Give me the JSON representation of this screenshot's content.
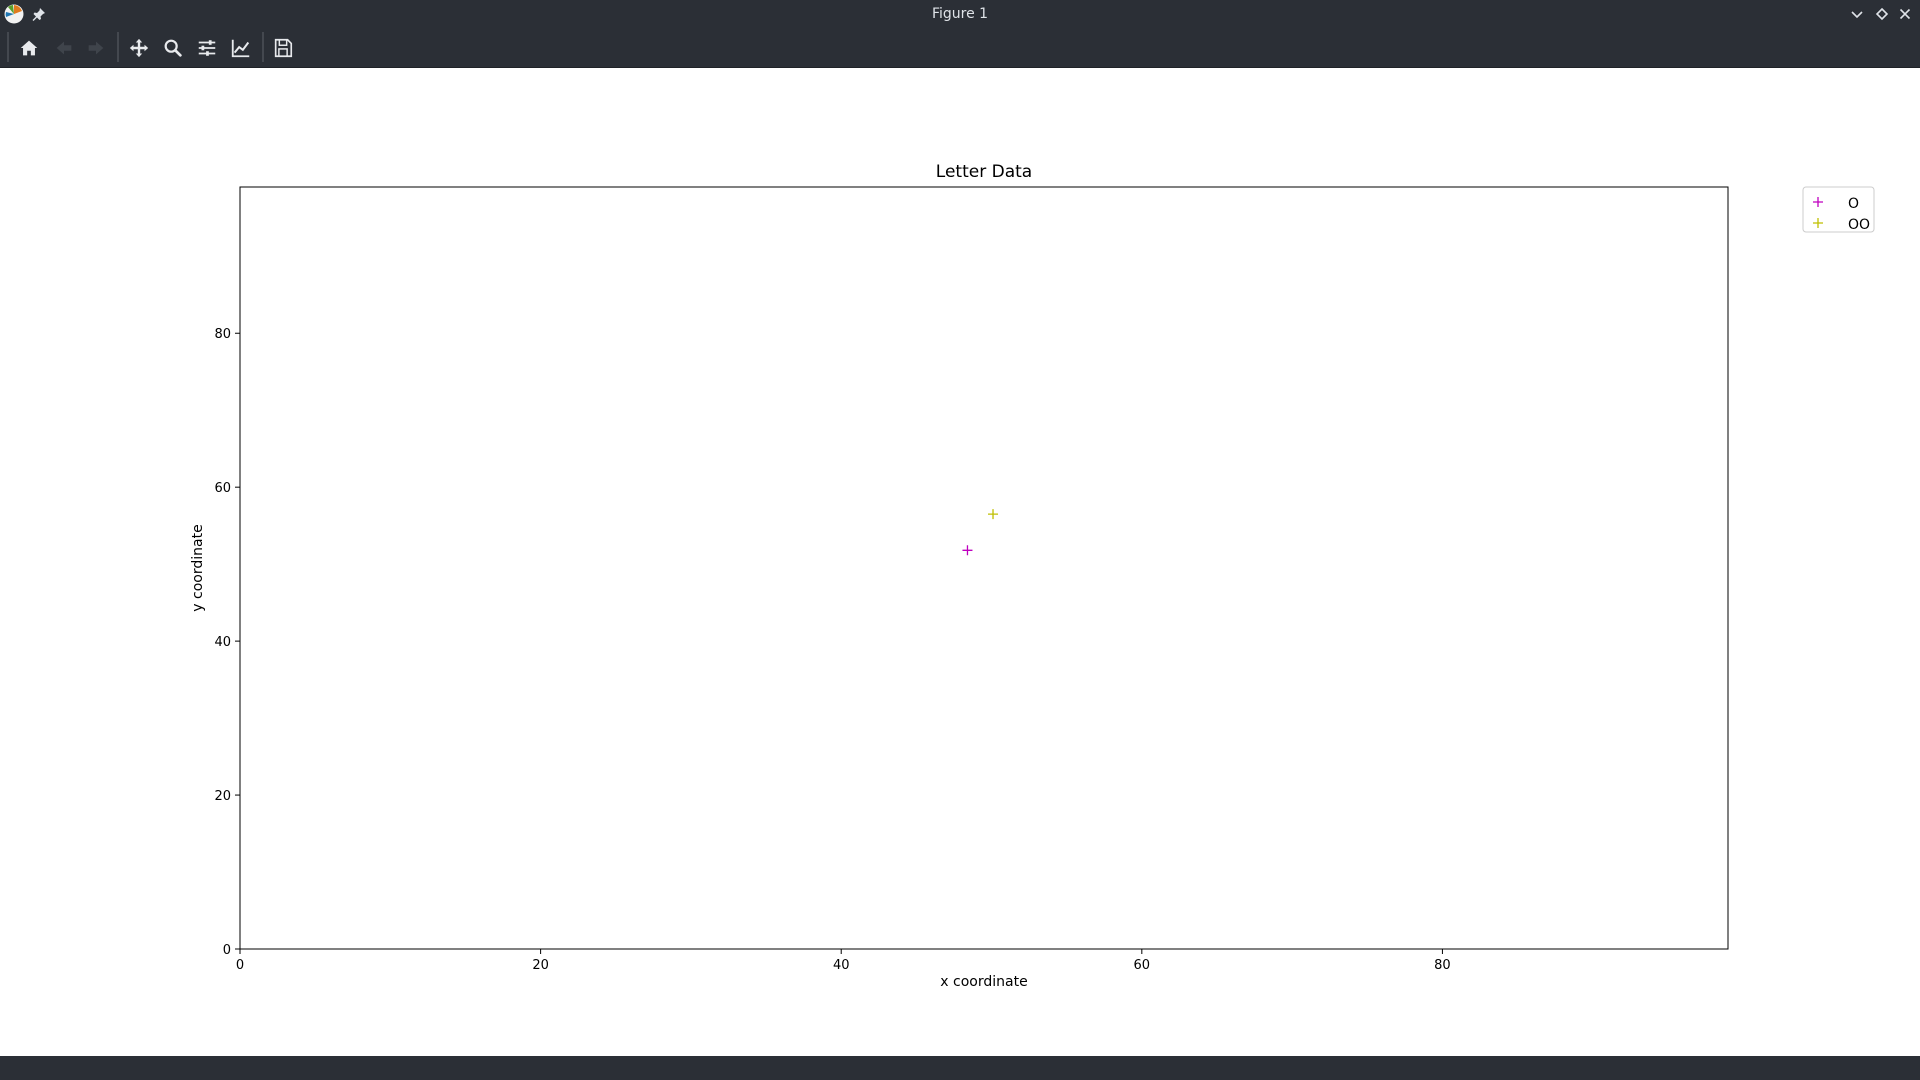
{
  "window": {
    "title": "Figure 1"
  },
  "toolbar": {
    "buttons": [
      {
        "name": "home",
        "icon": "home-icon",
        "enabled": true
      },
      {
        "name": "back",
        "icon": "arrow-left-icon",
        "enabled": false
      },
      {
        "name": "forward",
        "icon": "arrow-right-icon",
        "enabled": false
      },
      {
        "name": "pan",
        "icon": "move-icon",
        "enabled": true
      },
      {
        "name": "zoom",
        "icon": "zoom-icon",
        "enabled": true
      },
      {
        "name": "configure-subplots",
        "icon": "sliders-icon",
        "enabled": true
      },
      {
        "name": "edit-axis",
        "icon": "line-chart-icon",
        "enabled": true
      },
      {
        "name": "save",
        "icon": "save-icon",
        "enabled": true
      }
    ]
  },
  "chart_data": {
    "type": "scatter",
    "title": "Letter Data",
    "xlabel": "x coordinate",
    "ylabel": "y coordinate",
    "xlim": [
      0,
      99
    ],
    "ylim": [
      0,
      99
    ],
    "xticks": [
      0,
      20,
      40,
      60,
      80
    ],
    "yticks": [
      0,
      20,
      40,
      60,
      80
    ],
    "grid": false,
    "legend_position": "outside-top-right",
    "marker": "+",
    "series": [
      {
        "name": "O",
        "color": "#bf00bf",
        "points": [
          {
            "x": 48.4,
            "y": 51.8
          }
        ]
      },
      {
        "name": "OO",
        "color": "#bfbf00",
        "points": [
          {
            "x": 50.1,
            "y": 56.5
          }
        ]
      }
    ]
  }
}
